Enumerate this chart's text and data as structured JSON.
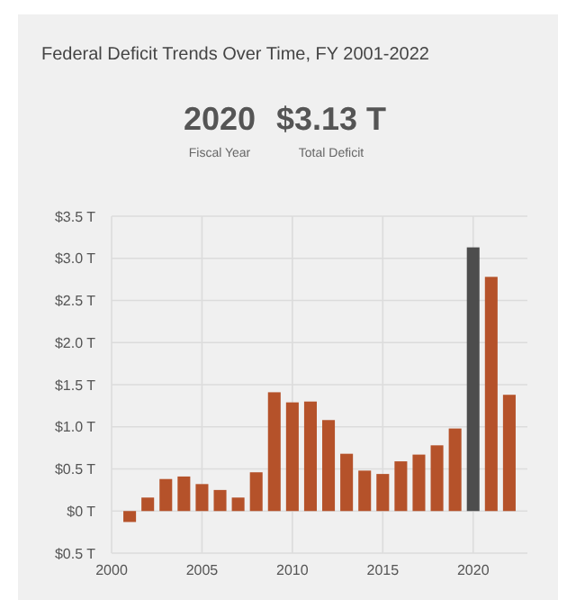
{
  "chart_data": {
    "type": "bar",
    "title": "Federal Deficit Trends Over Time, FY 2001-2022",
    "annotations": [
      "2020",
      "$3.13 T",
      "Fiscal Year",
      "Total Deficit"
    ],
    "x": [
      2001,
      2002,
      2003,
      2004,
      2005,
      2006,
      2007,
      2008,
      2009,
      2010,
      2011,
      2012,
      2013,
      2014,
      2015,
      2016,
      2017,
      2018,
      2019,
      2020,
      2021,
      2022
    ],
    "values": [
      -0.13,
      0.16,
      0.38,
      0.41,
      0.32,
      0.25,
      0.16,
      0.46,
      1.41,
      1.29,
      1.3,
      1.08,
      0.68,
      0.48,
      0.44,
      0.59,
      0.67,
      0.78,
      0.98,
      3.13,
      2.78,
      1.38
    ],
    "colors": [
      "#b5522a",
      "#b5522a",
      "#b5522a",
      "#b5522a",
      "#b5522a",
      "#b5522a",
      "#b5522a",
      "#b5522a",
      "#b5522a",
      "#b5522a",
      "#b5522a",
      "#b5522a",
      "#b5522a",
      "#b5522a",
      "#b5522a",
      "#b5522a",
      "#b5522a",
      "#b5522a",
      "#b5522a",
      "#4d4d4d",
      "#b5522a",
      "#b5522a"
    ],
    "xlim": [
      2000,
      2023
    ],
    "xticks": [
      2000,
      2005,
      2010,
      2015,
      2020
    ],
    "ylim": [
      -0.5,
      3.5
    ],
    "yticks": [
      {
        "value": -0.5,
        "label": "$0.5 T"
      },
      {
        "value": 0,
        "label": "$0 T"
      },
      {
        "value": 0.5,
        "label": "$0.5 T"
      },
      {
        "value": 1,
        "label": "$1.0 T"
      },
      {
        "value": 1.5,
        "label": "$1.5 T"
      },
      {
        "value": 2,
        "label": "$2.0 T"
      },
      {
        "value": 2.5,
        "label": "$2.5 T"
      },
      {
        "value": 3,
        "label": "$3.0 T"
      },
      {
        "value": 3.5,
        "label": "$3.5 T"
      }
    ],
    "grid": true
  }
}
